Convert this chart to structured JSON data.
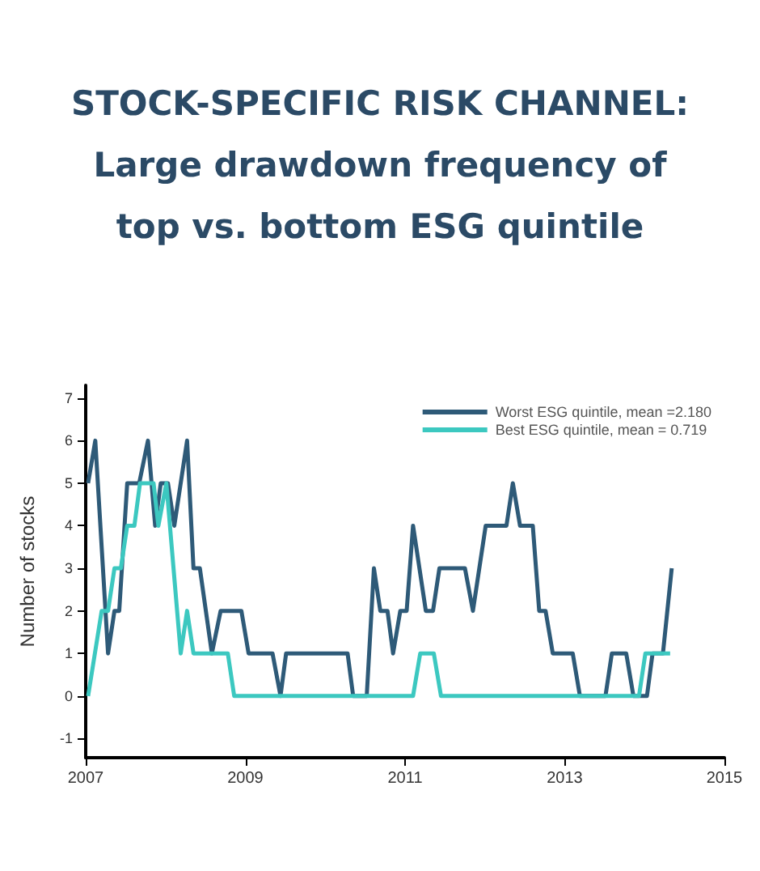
{
  "chart_data": {
    "type": "line",
    "title": "STOCK-SPECIFIC RISK CHANNEL:\nLarge drawdown frequency of\ntop vs. bottom ESG quintile",
    "ylabel": "Number of stocks",
    "xlim": [
      2007,
      2015
    ],
    "xticks": [
      2007,
      2009,
      2011,
      2013,
      2015
    ],
    "ylim": [
      -1.45,
      7.3
    ],
    "yticks": [
      -1,
      0,
      1,
      2,
      3,
      4,
      5,
      6,
      7
    ],
    "grid": false,
    "legend": "top right",
    "marker": "none",
    "line_style": "solid",
    "series": [
      {
        "name": "Worst ESG quintile, mean =2.180",
        "color": "#2e5a78",
        "x": [
          2007.03,
          2007.12,
          2007.28,
          2007.36,
          2007.42,
          2007.52,
          2007.67,
          2007.78,
          2007.87,
          2007.94,
          2008.03,
          2008.11,
          2008.27,
          2008.35,
          2008.43,
          2008.58,
          2008.69,
          2008.95,
          2009.04,
          2009.34,
          2009.44,
          2009.51,
          2010.28,
          2010.35,
          2010.52,
          2010.61,
          2010.69,
          2010.78,
          2010.85,
          2010.94,
          2011.02,
          2011.1,
          2011.26,
          2011.35,
          2011.43,
          2011.75,
          2011.85,
          2012.01,
          2012.27,
          2012.35,
          2012.44,
          2012.6,
          2012.68,
          2012.76,
          2012.85,
          2013.1,
          2013.19,
          2013.51,
          2013.59,
          2013.77,
          2013.86,
          2014.03,
          2014.1,
          2014.23,
          2014.34
        ],
        "values": [
          5,
          6,
          1,
          2,
          2,
          5,
          5,
          6,
          4,
          5,
          5,
          4,
          6,
          3,
          3,
          1,
          2,
          2,
          1,
          1,
          0,
          1,
          1,
          0,
          0,
          3,
          2,
          2,
          1,
          2,
          2,
          4,
          2,
          2,
          3,
          3,
          2,
          4,
          4,
          5,
          4,
          4,
          2,
          2,
          1,
          1,
          0,
          0,
          1,
          1,
          0,
          0,
          1,
          1,
          3
        ]
      },
      {
        "name": "Best ESG quintile, mean = 0.719",
        "color": "#3cc8c0",
        "x": [
          2007.03,
          2007.2,
          2007.28,
          2007.36,
          2007.44,
          2007.52,
          2007.61,
          2007.68,
          2007.85,
          2007.91,
          2008.01,
          2008.19,
          2008.27,
          2008.35,
          2008.78,
          2008.86,
          2011.1,
          2011.19,
          2011.36,
          2011.45,
          2013.93,
          2014.01,
          2014.32
        ],
        "values": [
          0,
          2,
          2,
          3,
          3,
          4,
          4,
          5,
          5,
          4,
          5,
          1,
          2,
          1,
          1,
          0,
          0,
          1,
          1,
          0,
          0,
          1,
          1
        ]
      }
    ]
  }
}
